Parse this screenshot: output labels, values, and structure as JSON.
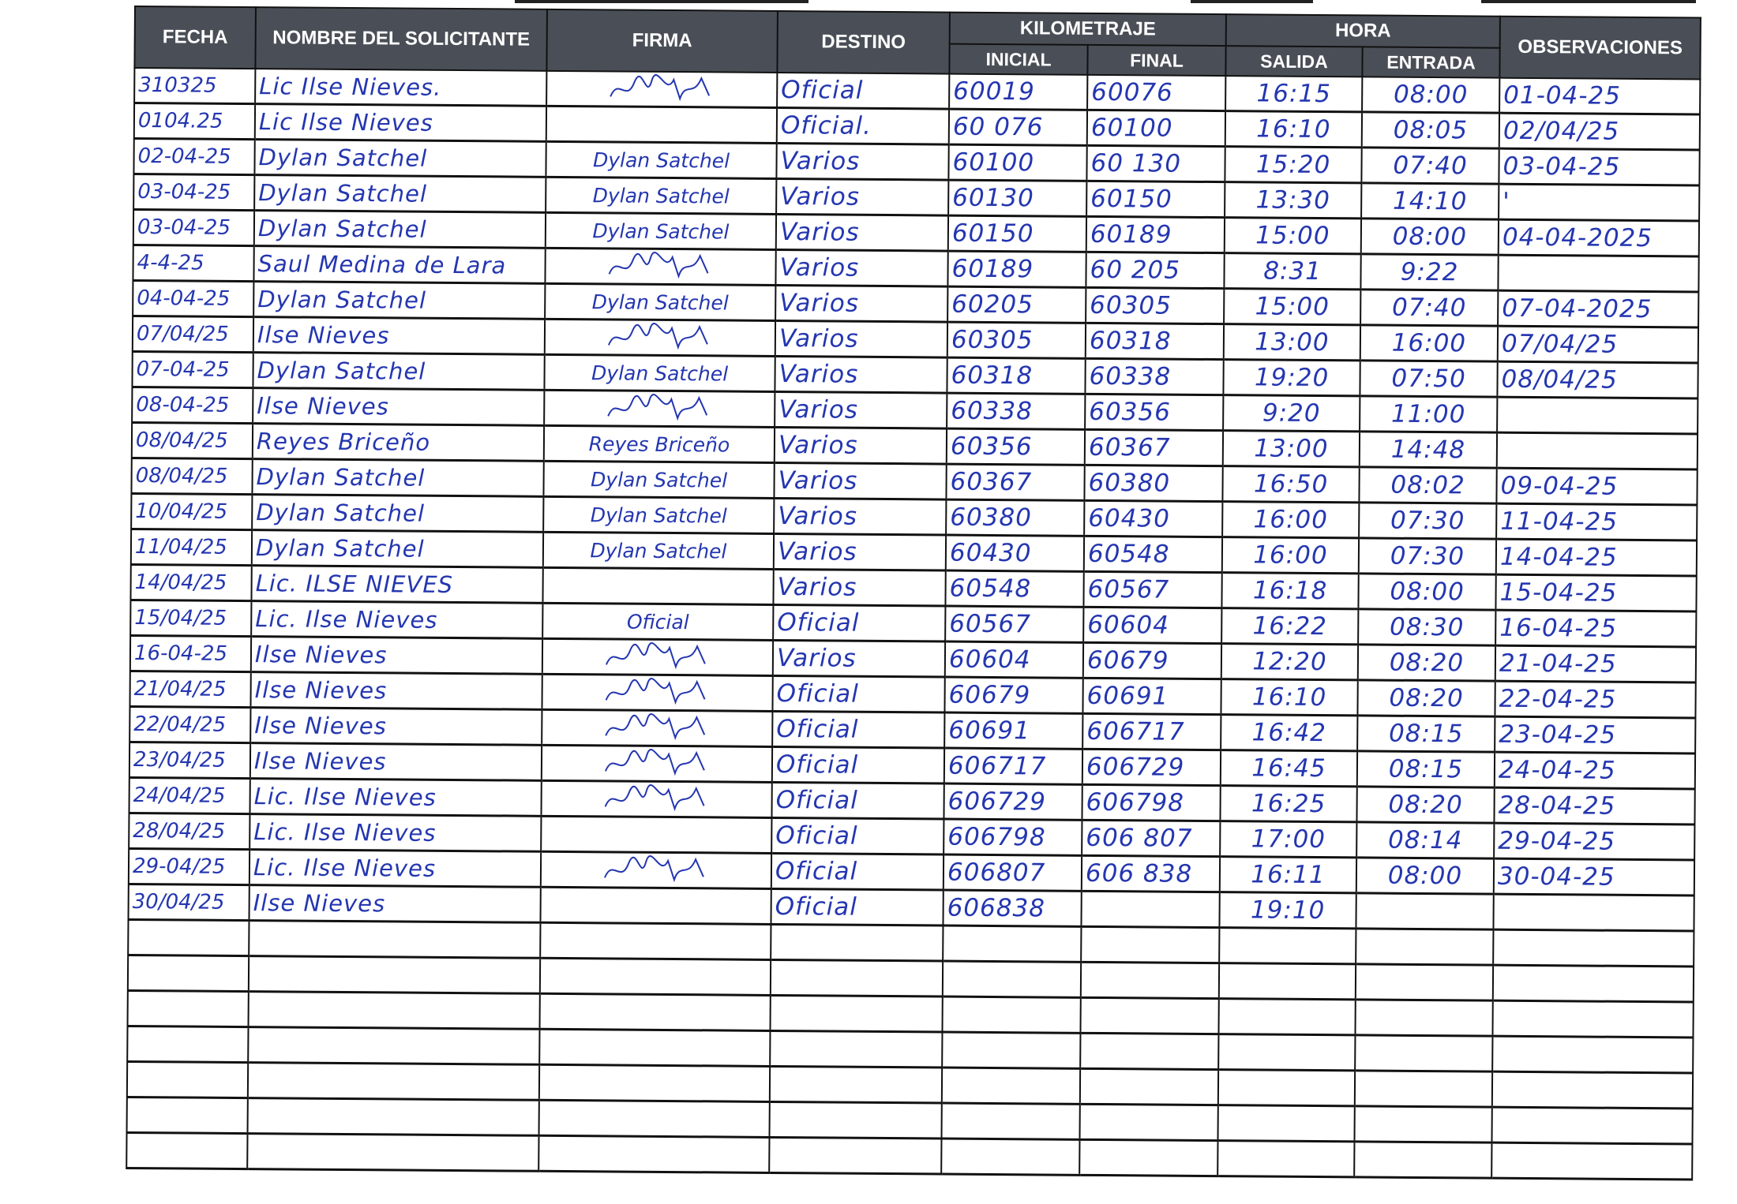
{
  "header": {
    "fecha": "FECHA",
    "nombre": "NOMBRE DEL SOLICITANTE",
    "firma": "FIRMA",
    "destino": "DESTINO",
    "kilometraje": "KILOMETRAJE",
    "inicial": "INICIAL",
    "final": "FINAL",
    "hora": "HORA",
    "salida": "SALIDA",
    "entrada": "ENTRADA",
    "observaciones": "OBSERVACIONES"
  },
  "ink_color": "#2436b0",
  "header_color": "#4a4f57",
  "rows": [
    {
      "fecha": "310325",
      "nombre": "Lic Ilse Nieves.",
      "firma": "",
      "firma_type": "scribble",
      "destino": "Oficial",
      "km_inicial": "60019",
      "km_final": "60076",
      "salida": "16:15",
      "entrada": "08:00",
      "observaciones": "01-04-25"
    },
    {
      "fecha": "0104.25",
      "nombre": "Lic Ilse Nieves",
      "firma": "",
      "firma_type": "none",
      "destino": "Oficial.",
      "km_inicial": "60 076",
      "km_final": "60100",
      "salida": "16:10",
      "entrada": "08:05",
      "observaciones": "02/04/25"
    },
    {
      "fecha": "02-04-25",
      "nombre": "Dylan Satchel",
      "firma": "Dylan Satchel",
      "firma_type": "text",
      "destino": "Varios",
      "km_inicial": "60100",
      "km_final": "60 130",
      "salida": "15:20",
      "entrada": "07:40",
      "observaciones": "03-04-25"
    },
    {
      "fecha": "03-04-25",
      "nombre": "Dylan Satchel",
      "firma": "Dylan Satchel",
      "firma_type": "text",
      "destino": "Varios",
      "km_inicial": "60130",
      "km_final": "60150",
      "salida": "13:30",
      "entrada": "14:10",
      "observaciones": "'"
    },
    {
      "fecha": "03-04-25",
      "nombre": "Dylan Satchel",
      "firma": "Dylan Satchel",
      "firma_type": "text",
      "destino": "Varios",
      "km_inicial": "60150",
      "km_final": "60189",
      "salida": "15:00",
      "entrada": "08:00",
      "observaciones": "04-04-2025"
    },
    {
      "fecha": "4-4-25",
      "nombre": "Saul Medina de Lara",
      "firma": "",
      "firma_type": "scribble",
      "destino": "Varios",
      "km_inicial": "60189",
      "km_final": "60 205",
      "salida": "8:31",
      "entrada": "9:22",
      "observaciones": ""
    },
    {
      "fecha": "04-04-25",
      "nombre": "Dylan Satchel",
      "firma": "Dylan Satchel",
      "firma_type": "text",
      "destino": "Varios",
      "km_inicial": "60205",
      "km_final": "60305",
      "salida": "15:00",
      "entrada": "07:40",
      "observaciones": "07-04-2025"
    },
    {
      "fecha": "07/04/25",
      "nombre": "Ilse Nieves",
      "firma": "",
      "firma_type": "scribble",
      "destino": "Varios",
      "km_inicial": "60305",
      "km_final": "60318",
      "salida": "13:00",
      "entrada": "16:00",
      "observaciones": "07/04/25"
    },
    {
      "fecha": "07-04-25",
      "nombre": "Dylan Satchel",
      "firma": "Dylan Satchel",
      "firma_type": "text",
      "destino": "Varios",
      "km_inicial": "60318",
      "km_final": "60338",
      "salida": "19:20",
      "entrada": "07:50",
      "observaciones": "08/04/25"
    },
    {
      "fecha": "08-04-25",
      "nombre": "Ilse Nieves",
      "firma": "",
      "firma_type": "scribble",
      "destino": "Varios",
      "km_inicial": "60338",
      "km_final": "60356",
      "salida": "9:20",
      "entrada": "11:00",
      "observaciones": ""
    },
    {
      "fecha": "08/04/25",
      "nombre": "Reyes Briceño",
      "firma": "Reyes Briceño",
      "firma_type": "text",
      "destino": "Varios",
      "km_inicial": "60356",
      "km_final": "60367",
      "salida": "13:00",
      "entrada": "14:48",
      "observaciones": ""
    },
    {
      "fecha": "08/04/25",
      "nombre": "Dylan Satchel",
      "firma": "Dylan Satchel",
      "firma_type": "text",
      "destino": "Varios",
      "km_inicial": "60367",
      "km_final": "60380",
      "salida": "16:50",
      "entrada": "08:02",
      "observaciones": "09-04-25"
    },
    {
      "fecha": "10/04/25",
      "nombre": "Dylan Satchel",
      "firma": "Dylan Satchel",
      "firma_type": "text",
      "destino": "Varios",
      "km_inicial": "60380",
      "km_final": "60430",
      "salida": "16:00",
      "entrada": "07:30",
      "observaciones": "11-04-25"
    },
    {
      "fecha": "11/04/25",
      "nombre": "Dylan Satchel",
      "firma": "Dylan Satchel",
      "firma_type": "text",
      "destino": "Varios",
      "km_inicial": "60430",
      "km_final": "60548",
      "salida": "16:00",
      "entrada": "07:30",
      "observaciones": "14-04-25"
    },
    {
      "fecha": "14/04/25",
      "nombre": "Lic. ILSE NIEVES",
      "firma": "",
      "firma_type": "none",
      "destino": "Varios",
      "km_inicial": "60548",
      "km_final": "60567",
      "salida": "16:18",
      "entrada": "08:00",
      "observaciones": "15-04-25"
    },
    {
      "fecha": "15/04/25",
      "nombre": "Lic. Ilse Nieves",
      "firma": "Oficial",
      "firma_type": "text",
      "destino": "Oficial",
      "km_inicial": "60567",
      "km_final": "60604",
      "salida": "16:22",
      "entrada": "08:30",
      "observaciones": "16-04-25"
    },
    {
      "fecha": "16-04-25",
      "nombre": "Ilse Nieves",
      "firma": "",
      "firma_type": "scribble",
      "destino": "Varios",
      "km_inicial": "60604",
      "km_final": "60679",
      "salida": "12:20",
      "entrada": "08:20",
      "observaciones": "21-04-25"
    },
    {
      "fecha": "21/04/25",
      "nombre": "Ilse Nieves",
      "firma": "",
      "firma_type": "scribble",
      "destino": "Oficial",
      "km_inicial": "60679",
      "km_final": "60691",
      "salida": "16:10",
      "entrada": "08:20",
      "observaciones": "22-04-25"
    },
    {
      "fecha": "22/04/25",
      "nombre": "Ilse Nieves",
      "firma": "",
      "firma_type": "scribble",
      "destino": "Oficial",
      "km_inicial": "60691",
      "km_final": "606717",
      "salida": "16:42",
      "entrada": "08:15",
      "observaciones": "23-04-25"
    },
    {
      "fecha": "23/04/25",
      "nombre": "Ilse Nieves",
      "firma": "",
      "firma_type": "scribble",
      "destino": "Oficial",
      "km_inicial": "606717",
      "km_final": "606729",
      "salida": "16:45",
      "entrada": "08:15",
      "observaciones": "24-04-25"
    },
    {
      "fecha": "24/04/25",
      "nombre": "Lic. Ilse Nieves",
      "firma": "",
      "firma_type": "scribble",
      "destino": "Oficial",
      "km_inicial": "606729",
      "km_final": "606798",
      "salida": "16:25",
      "entrada": "08:20",
      "observaciones": "28-04-25"
    },
    {
      "fecha": "28/04/25",
      "nombre": "Lic. Ilse Nieves",
      "firma": "",
      "firma_type": "none",
      "destino": "Oficial",
      "km_inicial": "606798",
      "km_final": "606 807",
      "salida": "17:00",
      "entrada": "08:14",
      "observaciones": "29-04-25"
    },
    {
      "fecha": "29-04/25",
      "nombre": "Lic. Ilse Nieves",
      "firma": "",
      "firma_type": "scribble",
      "destino": "Oficial",
      "km_inicial": "606807",
      "km_final": "606 838",
      "salida": "16:11",
      "entrada": "08:00",
      "observaciones": "30-04-25"
    },
    {
      "fecha": "30/04/25",
      "nombre": "Ilse Nieves",
      "firma": "",
      "firma_type": "none",
      "destino": "Oficial",
      "km_inicial": "606838",
      "km_final": "",
      "salida": "19:10",
      "entrada": "",
      "observaciones": ""
    }
  ],
  "empty_rows": 7
}
